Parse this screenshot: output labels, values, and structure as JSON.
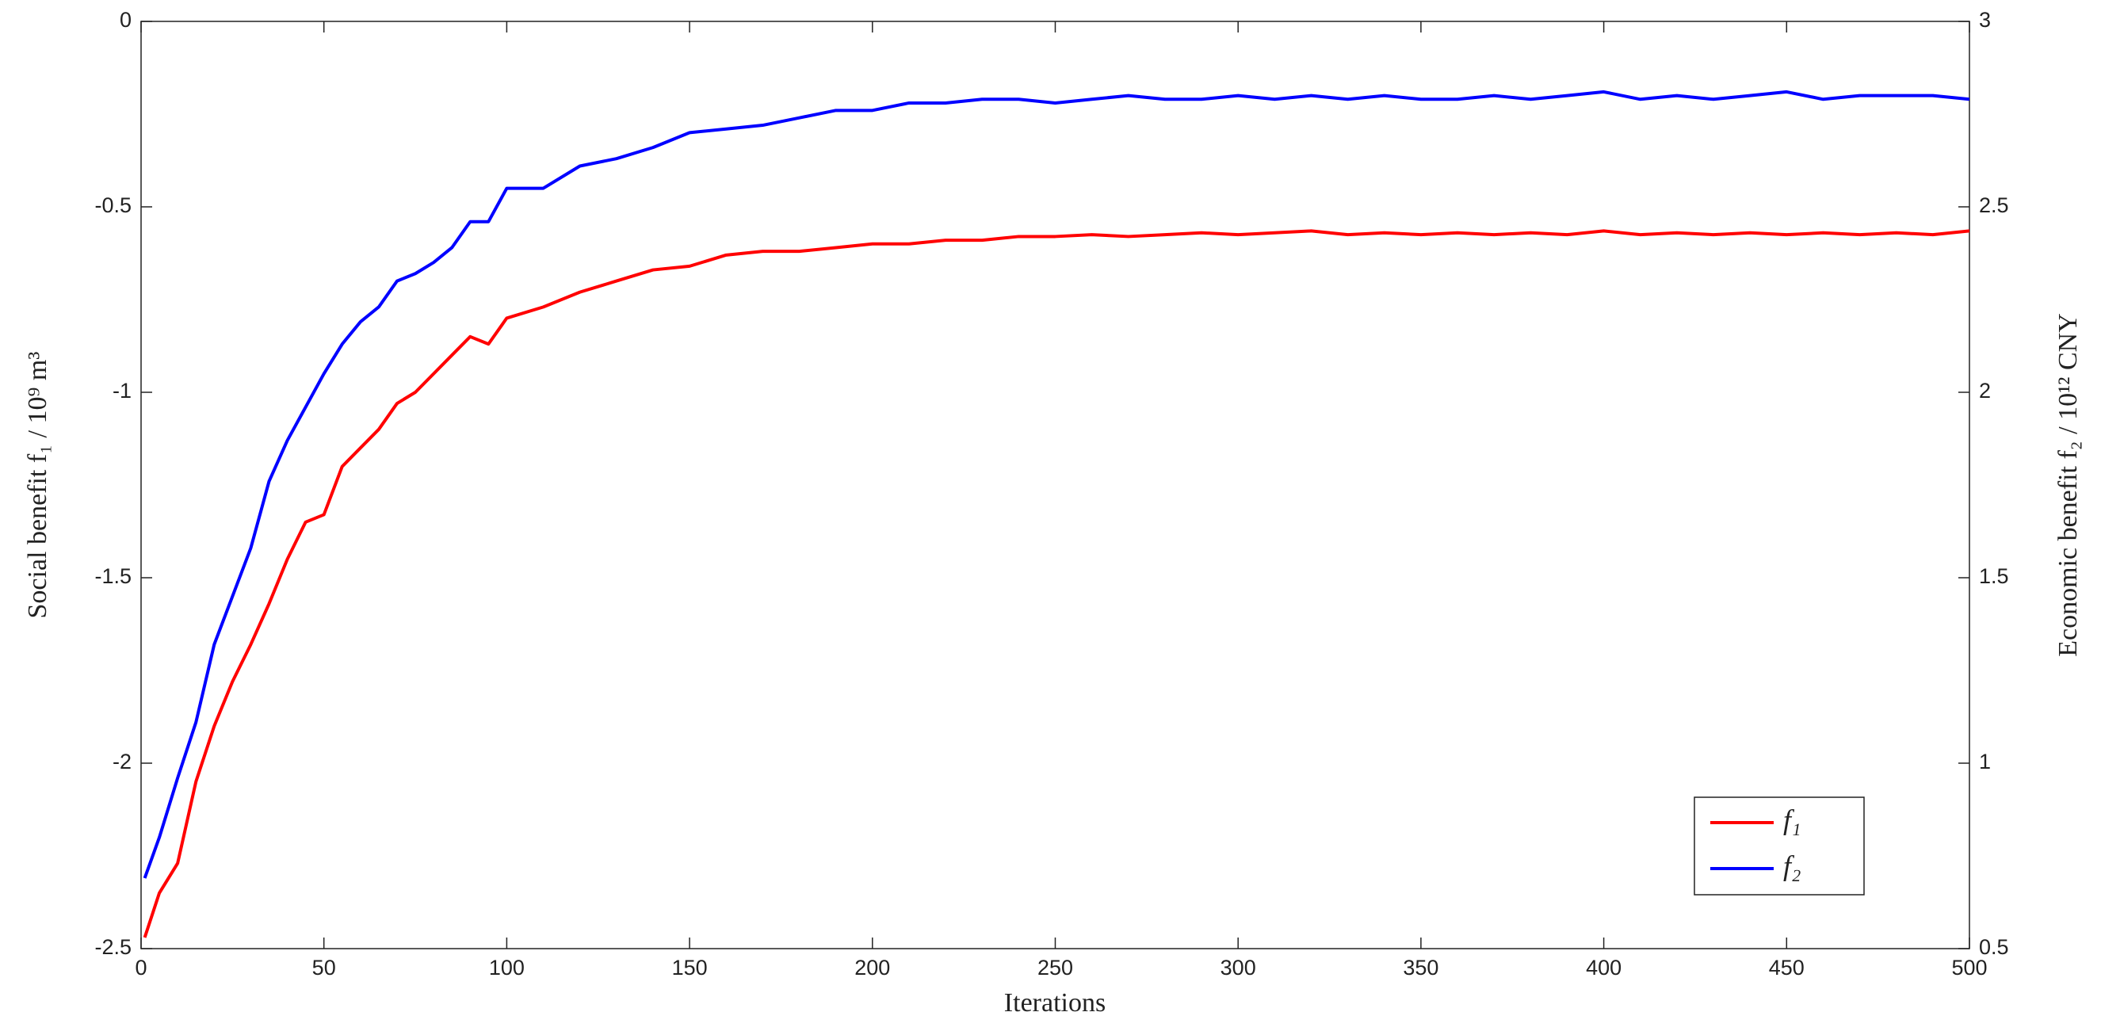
{
  "chart_data": {
    "type": "line",
    "xlabel": "Iterations",
    "ylabel": "Social benefit f₁ / 10⁹ m³",
    "y2label": "Economic benefit f₂ / 10¹² CNY",
    "x": [
      1,
      5,
      10,
      15,
      20,
      25,
      30,
      35,
      40,
      45,
      50,
      55,
      60,
      65,
      70,
      75,
      80,
      85,
      90,
      95,
      100,
      110,
      120,
      130,
      140,
      150,
      160,
      170,
      180,
      190,
      200,
      210,
      220,
      230,
      240,
      250,
      260,
      270,
      280,
      290,
      300,
      310,
      320,
      330,
      340,
      350,
      360,
      370,
      380,
      390,
      400,
      410,
      420,
      430,
      440,
      450,
      460,
      470,
      480,
      490,
      500
    ],
    "series": [
      {
        "name": "f₁",
        "color": "#ff0000",
        "values": [
          -2.47,
          -2.35,
          -2.27,
          -2.05,
          -1.9,
          -1.78,
          -1.68,
          -1.57,
          -1.45,
          -1.35,
          -1.33,
          -1.2,
          -1.15,
          -1.1,
          -1.03,
          -1.0,
          -0.95,
          -0.9,
          -0.85,
          -0.87,
          -0.8,
          -0.77,
          -0.73,
          -0.7,
          -0.67,
          -0.66,
          -0.63,
          -0.62,
          -0.62,
          -0.61,
          -0.6,
          -0.6,
          -0.59,
          -0.59,
          -0.58,
          -0.58,
          -0.575,
          -0.58,
          -0.575,
          -0.57,
          -0.575,
          -0.57,
          -0.565,
          -0.575,
          -0.57,
          -0.575,
          -0.57,
          -0.575,
          -0.57,
          -0.575,
          -0.565,
          -0.575,
          -0.57,
          -0.575,
          -0.57,
          -0.575,
          -0.57,
          -0.575,
          -0.57,
          -0.575,
          -0.565
        ]
      },
      {
        "name": "f₂",
        "color": "#0000ff",
        "axis": "y2",
        "values": [
          0.69,
          0.8,
          0.96,
          1.11,
          1.32,
          1.45,
          1.58,
          1.76,
          1.87,
          1.96,
          2.05,
          2.13,
          2.19,
          2.23,
          2.3,
          2.32,
          2.35,
          2.39,
          2.46,
          2.46,
          2.55,
          2.55,
          2.61,
          2.63,
          2.66,
          2.7,
          2.71,
          2.72,
          2.74,
          2.76,
          2.76,
          2.78,
          2.78,
          2.79,
          2.79,
          2.78,
          2.79,
          2.8,
          2.79,
          2.79,
          2.8,
          2.79,
          2.8,
          2.79,
          2.8,
          2.79,
          2.79,
          2.8,
          2.79,
          2.8,
          2.81,
          2.79,
          2.8,
          2.79,
          2.8,
          2.81,
          2.79,
          2.8,
          2.8,
          2.8,
          2.79
        ]
      }
    ],
    "xlim": [
      0,
      500
    ],
    "xticks": [
      0,
      50,
      100,
      150,
      200,
      250,
      300,
      350,
      400,
      450,
      500
    ],
    "ylim": [
      -2.5,
      0
    ],
    "yticks": [
      -2.5,
      -2,
      -1.5,
      -1,
      -0.5,
      0
    ],
    "y2lim": [
      0.5,
      3
    ],
    "y2ticks": [
      0.5,
      1,
      1.5,
      2,
      2.5,
      3
    ],
    "legend": "lower right"
  }
}
